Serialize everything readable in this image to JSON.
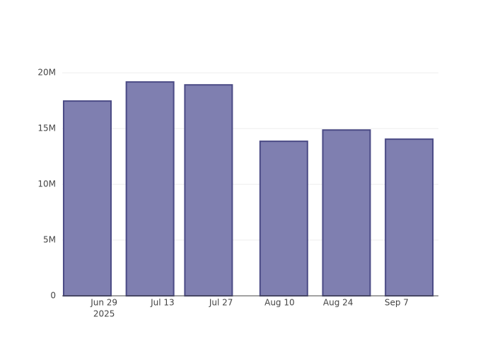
{
  "chart_data": {
    "type": "bar",
    "x": [
      "2025-06-25",
      "2025-07-10",
      "2025-07-24",
      "2025-08-11",
      "2025-08-26",
      "2025-09-10"
    ],
    "values": [
      17470000,
      19180000,
      18920000,
      13860000,
      14870000,
      14050000
    ],
    "color": "#7f7fb0",
    "edge_color": "#4a4a85",
    "xlim": [
      "2025-06-19",
      "2025-09-17"
    ],
    "xticks": [
      {
        "value": "2025-06-29",
        "label": "Jun 29"
      },
      {
        "value": "2025-07-13",
        "label": "Jul 13"
      },
      {
        "value": "2025-07-27",
        "label": "Jul 27"
      },
      {
        "value": "2025-08-10",
        "label": "Aug 10"
      },
      {
        "value": "2025-08-24",
        "label": "Aug 24"
      },
      {
        "value": "2025-09-07",
        "label": "Sep 7"
      }
    ],
    "x_year_label": "2025",
    "ylim": [
      0,
      20200000
    ],
    "yticks": [
      0,
      {
        "value": 5000000,
        "label": "5M"
      },
      {
        "value": 10000000,
        "label": "10M"
      },
      {
        "value": 15000000,
        "label": "15M"
      },
      {
        "value": 20000000,
        "label": "20M"
      }
    ],
    "grid": true
  }
}
